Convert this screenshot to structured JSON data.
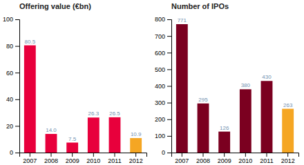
{
  "chart_data": [
    {
      "type": "bar",
      "title": "Offering value (€bn)",
      "categories": [
        "2007",
        "2008",
        "2009",
        "2010",
        "2011",
        "2012"
      ],
      "values": [
        80.5,
        14.0,
        7.5,
        26.3,
        26.5,
        10.9
      ],
      "value_labels": [
        "80.5",
        "14.0",
        "7.5",
        "26.3",
        "26.5",
        "10.9"
      ],
      "colors": [
        "#E8003C",
        "#E8003C",
        "#E8003C",
        "#E8003C",
        "#E8003C",
        "#F5A623"
      ],
      "ylim": [
        0,
        100
      ],
      "yticks": [
        0,
        20,
        40,
        60,
        80,
        100
      ],
      "grid": false,
      "data_labels": true
    },
    {
      "type": "bar",
      "title": "Number of IPOs",
      "categories": [
        "2007",
        "2008",
        "2009",
        "2010",
        "2011",
        "2012"
      ],
      "values": [
        771,
        295,
        126,
        380,
        430,
        263
      ],
      "colors": [
        "#7B0020",
        "#7B0020",
        "#7B0020",
        "#7B0020",
        "#7B0020",
        "#F5A623"
      ],
      "ylim": [
        0,
        800
      ],
      "yticks": [
        0,
        100,
        200,
        300,
        400,
        500,
        600,
        700,
        800
      ],
      "grid": false,
      "data_labels": true
    }
  ]
}
